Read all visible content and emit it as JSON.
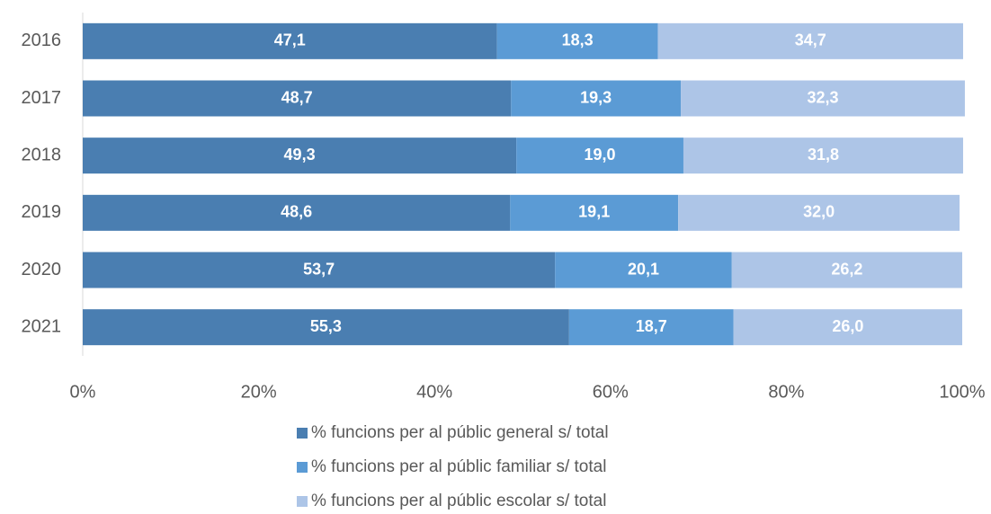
{
  "chart_data": {
    "type": "bar",
    "orientation": "horizontal",
    "stacked": true,
    "categories": [
      "2016",
      "2017",
      "2018",
      "2019",
      "2020",
      "2021"
    ],
    "series": [
      {
        "name": "% funcions per al públic general s/ total",
        "color": "#4a7eb1",
        "values": [
          47.1,
          48.7,
          49.3,
          48.6,
          53.7,
          55.3
        ],
        "value_labels": [
          "47,1",
          "48,7",
          "49,3",
          "48,6",
          "53,7",
          "55,3"
        ]
      },
      {
        "name": "% funcions per al públic familiar s/ total",
        "color": "#5b9bd5",
        "values": [
          18.3,
          19.3,
          19.0,
          19.1,
          20.1,
          18.7
        ],
        "value_labels": [
          "18,3",
          "19,3",
          "19,0",
          "19,1",
          "20,1",
          "18,7"
        ]
      },
      {
        "name": "% funcions per al públic escolar s/ total",
        "color": "#adc5e7",
        "values": [
          34.7,
          32.3,
          31.8,
          32.0,
          26.2,
          26.0
        ],
        "value_labels": [
          "34,7",
          "32,3",
          "31,8",
          "32,0",
          "26,2",
          "26,0"
        ]
      }
    ],
    "xlim": [
      0,
      100
    ],
    "xticks": [
      {
        "value": 0,
        "label": "0%"
      },
      {
        "value": 20,
        "label": "20%"
      },
      {
        "value": 40,
        "label": "40%"
      },
      {
        "value": 60,
        "label": "60%"
      },
      {
        "value": 80,
        "label": "80%"
      },
      {
        "value": 100,
        "label": "100%"
      }
    ],
    "legend": "bottom"
  }
}
